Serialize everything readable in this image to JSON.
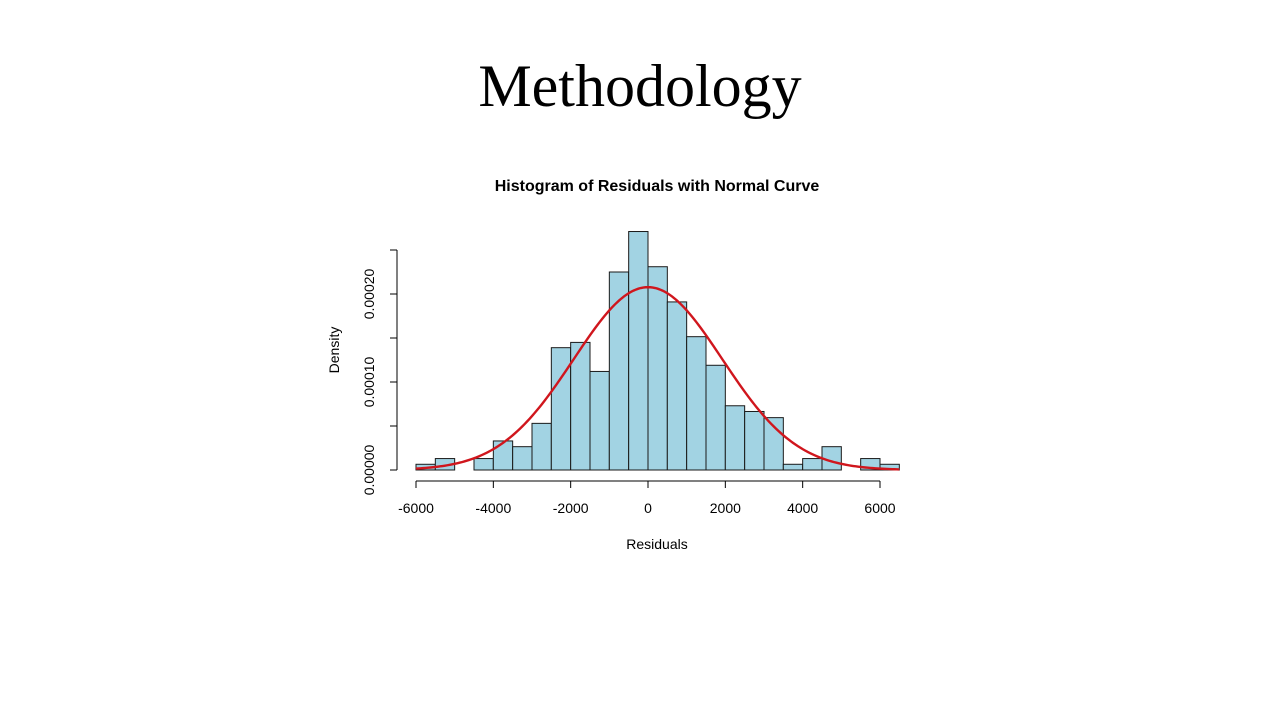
{
  "slide": {
    "title": "Methodology"
  },
  "colors": {
    "bar_fill": "#a2d3e3",
    "bar_stroke": "#1a1a1a",
    "curve": "#d0161d",
    "axis": "#000000",
    "background": "#ffffff"
  },
  "chart_data": {
    "type": "bar",
    "title": "Histogram of Residuals with Normal Curve",
    "xlabel": "Residuals",
    "ylabel": "Density",
    "xlim": [
      -6000,
      6500
    ],
    "ylim": [
      0,
      0.00025
    ],
    "x_ticks": [
      -6000,
      -4000,
      -2000,
      0,
      2000,
      4000,
      6000
    ],
    "x_tick_labels": [
      "-6000",
      "-4000",
      "-2000",
      "0",
      "2000",
      "4000",
      "6000"
    ],
    "y_ticks": [
      0,
      5e-05,
      0.0001,
      0.00015,
      0.0002,
      0.00025
    ],
    "y_tick_labels": [
      "0.00000",
      "",
      "0.00010",
      "",
      "0.00020",
      ""
    ],
    "bin_width": 500,
    "bin_starts": [
      -6000,
      -5500,
      -5000,
      -4500,
      -4000,
      -3500,
      -3000,
      -2500,
      -2000,
      -1500,
      -1000,
      -500,
      0,
      500,
      1000,
      1500,
      2000,
      2500,
      3000,
      3500,
      4000,
      4500,
      5000,
      5500,
      6000
    ],
    "values": [
      6.5e-06,
      1.3e-05,
      0.0,
      1.3e-05,
      3.3e-05,
      2.65e-05,
      5.3e-05,
      0.000139,
      0.000145,
      0.000112,
      0.000225,
      0.000271,
      0.000231,
      0.000191,
      0.0001515,
      0.000119,
      7.3e-05,
      6.65e-05,
      5.95e-05,
      6.5e-06,
      1.3e-05,
      2.65e-05,
      0.0,
      1.3e-05,
      6.5e-06
    ],
    "series": [
      {
        "type": "line",
        "label_on_chart": "",
        "distribution": "normal",
        "mean": 0,
        "sd": 1920
      }
    ],
    "grid": false,
    "legend": "none"
  }
}
